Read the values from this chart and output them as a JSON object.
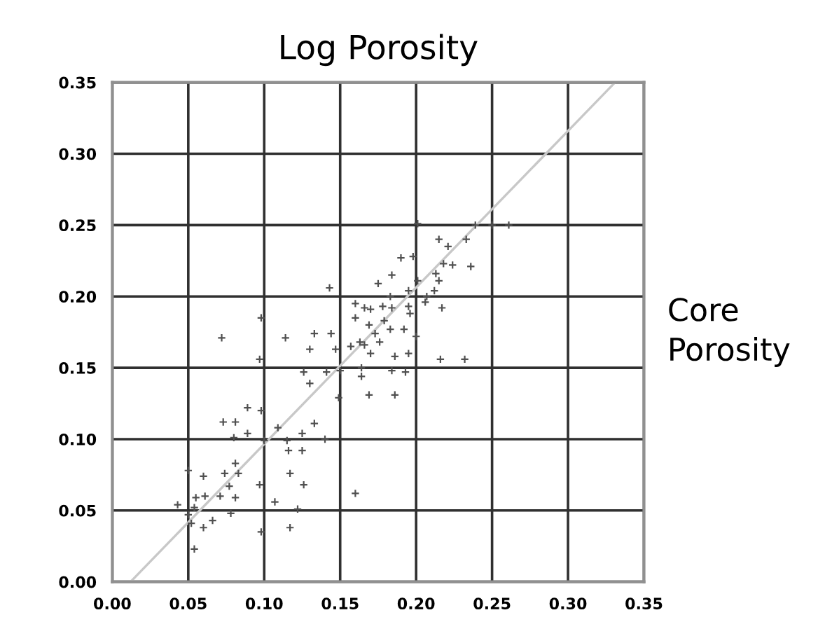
{
  "chart_data": {
    "type": "scatter",
    "title": "Log Porosity",
    "ylabel": "Core\nPorosity",
    "xlim": [
      0,
      0.35
    ],
    "ylim": [
      0,
      0.35
    ],
    "xticks": [
      {
        "value": 0,
        "label": "0.00"
      },
      {
        "value": 0.05,
        "label": "0.05"
      },
      {
        "value": 0.1,
        "label": "0.10"
      },
      {
        "value": 0.15,
        "label": "0.15"
      },
      {
        "value": 0.2,
        "label": "0.20"
      },
      {
        "value": 0.25,
        "label": "0.25"
      },
      {
        "value": 0.3,
        "label": "0.30"
      },
      {
        "value": 0.35,
        "label": "0.35"
      }
    ],
    "yticks": [
      {
        "value": 0,
        "label": "0.00"
      },
      {
        "value": 0.05,
        "label": "0.05"
      },
      {
        "value": 0.1,
        "label": "0.10"
      },
      {
        "value": 0.15,
        "label": "0.15"
      },
      {
        "value": 0.2,
        "label": "0.20"
      },
      {
        "value": 0.25,
        "label": "0.25"
      },
      {
        "value": 0.3,
        "label": "0.30"
      },
      {
        "value": 0.35,
        "label": "0.35"
      }
    ],
    "grid": true,
    "marker": "cross",
    "series": [
      {
        "type": "line",
        "marker": "none",
        "color": "#c8c8c8",
        "x": [
          0.012,
          0.331
        ],
        "values": [
          0,
          0.35
        ]
      },
      {
        "color": "#505050",
        "x": [
          0.072,
          0.098,
          0.097,
          0.114,
          0.133,
          0.144,
          0.143,
          0.13,
          0.147,
          0.126,
          0.141,
          0.15,
          0.13,
          0.149,
          0.164,
          0.169,
          0.186,
          0.089,
          0.098,
          0.073,
          0.081,
          0.089,
          0.08,
          0.109,
          0.115,
          0.125,
          0.133,
          0.14,
          0.1,
          0.116,
          0.125,
          0.117,
          0.126,
          0.097,
          0.107,
          0.122,
          0.16,
          0.117,
          0.098,
          0.05,
          0.06,
          0.074,
          0.083,
          0.081,
          0.077,
          0.071,
          0.081,
          0.061,
          0.055,
          0.043,
          0.05,
          0.054,
          0.078,
          0.066,
          0.06,
          0.052,
          0.054,
          0.16,
          0.166,
          0.16,
          0.17,
          0.178,
          0.184,
          0.195,
          0.196,
          0.183,
          0.175,
          0.184,
          0.19,
          0.198,
          0.201,
          0.195,
          0.206,
          0.217,
          0.169,
          0.179,
          0.183,
          0.192,
          0.173,
          0.163,
          0.157,
          0.166,
          0.17,
          0.176,
          0.186,
          0.195,
          0.2,
          0.184,
          0.193,
          0.164,
          0.216,
          0.232,
          0.201,
          0.215,
          0.221,
          0.233,
          0.239,
          0.25,
          0.261,
          0.218,
          0.224,
          0.213,
          0.215,
          0.236,
          0.212,
          0.207
        ],
        "values": [
          0.171,
          0.185,
          0.156,
          0.171,
          0.174,
          0.174,
          0.206,
          0.163,
          0.163,
          0.147,
          0.147,
          0.148,
          0.139,
          0.129,
          0.144,
          0.131,
          0.131,
          0.122,
          0.12,
          0.112,
          0.112,
          0.104,
          0.101,
          0.108,
          0.099,
          0.104,
          0.111,
          0.1,
          0.099,
          0.092,
          0.092,
          0.076,
          0.068,
          0.068,
          0.056,
          0.051,
          0.062,
          0.038,
          0.035,
          0.078,
          0.074,
          0.076,
          0.076,
          0.083,
          0.067,
          0.06,
          0.059,
          0.06,
          0.059,
          0.054,
          0.047,
          0.052,
          0.048,
          0.043,
          0.038,
          0.041,
          0.023,
          0.195,
          0.192,
          0.185,
          0.191,
          0.193,
          0.192,
          0.193,
          0.188,
          0.2,
          0.209,
          0.215,
          0.227,
          0.228,
          0.211,
          0.204,
          0.196,
          0.192,
          0.18,
          0.183,
          0.177,
          0.177,
          0.174,
          0.168,
          0.165,
          0.166,
          0.16,
          0.168,
          0.158,
          0.16,
          0.172,
          0.148,
          0.147,
          0.15,
          0.156,
          0.156,
          0.251,
          0.24,
          0.235,
          0.24,
          0.25,
          0.25,
          0.25,
          0.223,
          0.222,
          0.216,
          0.211,
          0.221,
          0.204,
          0.2
        ]
      }
    ]
  }
}
